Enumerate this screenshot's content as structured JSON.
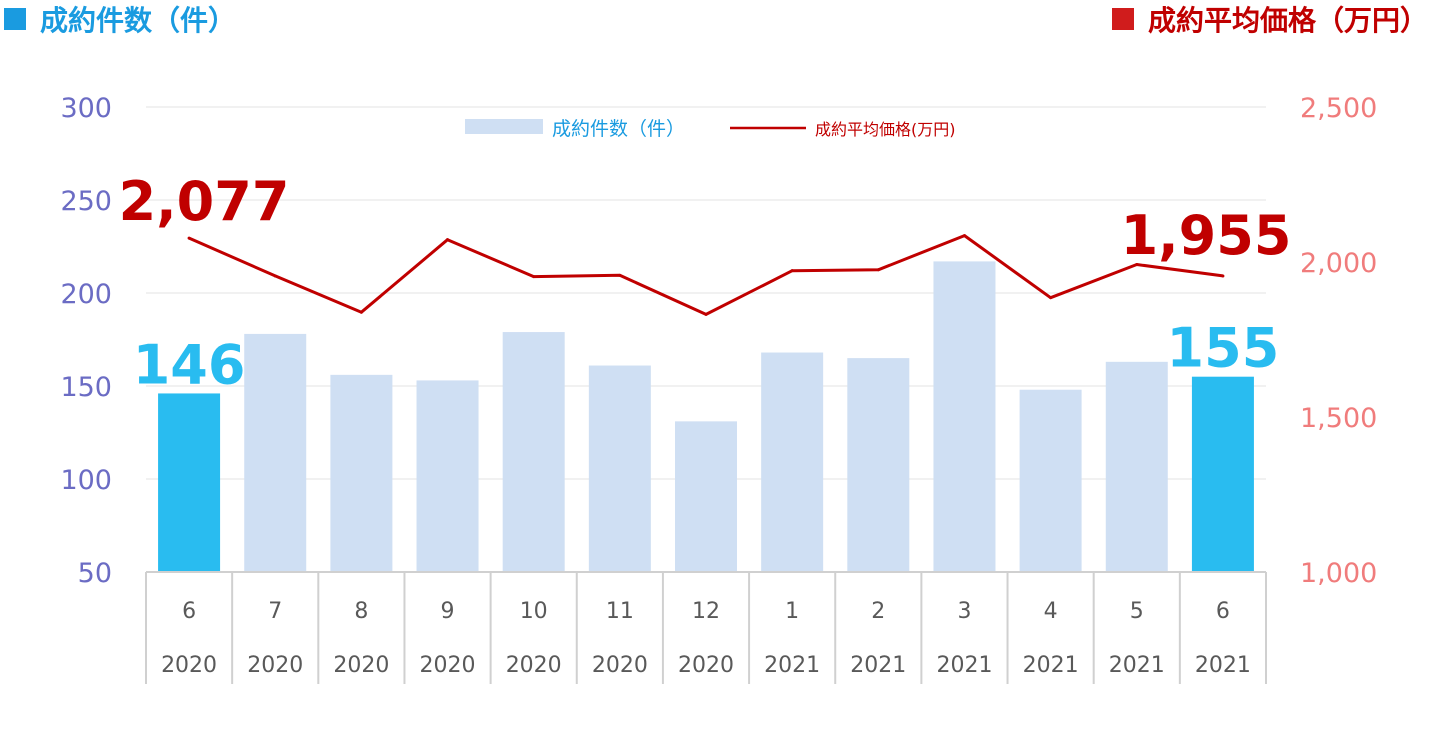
{
  "header": {
    "left_title": "成約件数（件）",
    "right_title": "成約平均価格（万円）",
    "left_marker_color": "#1a9be0",
    "right_marker_color": "#d01c1c"
  },
  "chart_data": {
    "type": "bar",
    "categories": [
      {
        "month": "6",
        "year": "2020"
      },
      {
        "month": "7",
        "year": "2020"
      },
      {
        "month": "8",
        "year": "2020"
      },
      {
        "month": "9",
        "year": "2020"
      },
      {
        "month": "10",
        "year": "2020"
      },
      {
        "month": "11",
        "year": "2020"
      },
      {
        "month": "12",
        "year": "2020"
      },
      {
        "month": "1",
        "year": "2021"
      },
      {
        "month": "2",
        "year": "2021"
      },
      {
        "month": "3",
        "year": "2021"
      },
      {
        "month": "4",
        "year": "2021"
      },
      {
        "month": "5",
        "year": "2021"
      },
      {
        "month": "6",
        "year": "2021"
      }
    ],
    "series": [
      {
        "name": "成約件数（件）",
        "type": "bar",
        "axis": "left",
        "values": [
          146,
          178,
          156,
          153,
          179,
          161,
          131,
          168,
          165,
          217,
          148,
          163,
          155
        ],
        "highlight_indices": [
          0,
          12
        ],
        "color": "#cfdff3",
        "highlight_color": "#29bcf0"
      },
      {
        "name": "成約平均価格(万円)",
        "type": "line",
        "axis": "right",
        "values": [
          2077,
          1955,
          1838,
          2072,
          1953,
          1957,
          1831,
          1972,
          1975,
          2085,
          1885,
          1992,
          1955
        ],
        "color": "#c00000"
      }
    ],
    "left_axis": {
      "min": 50,
      "max": 300,
      "ticks": [
        "50",
        "100",
        "150",
        "200",
        "250",
        "300"
      ]
    },
    "right_axis": {
      "min": 1000,
      "max": 2500,
      "ticks": [
        "1,000",
        "1,500",
        "2,000",
        "2,500"
      ]
    },
    "annotations": {
      "bar_first": "146",
      "bar_last": "155",
      "line_first": "2,077",
      "line_last": "1,955"
    },
    "grid": true,
    "legend_position": "top-center"
  }
}
